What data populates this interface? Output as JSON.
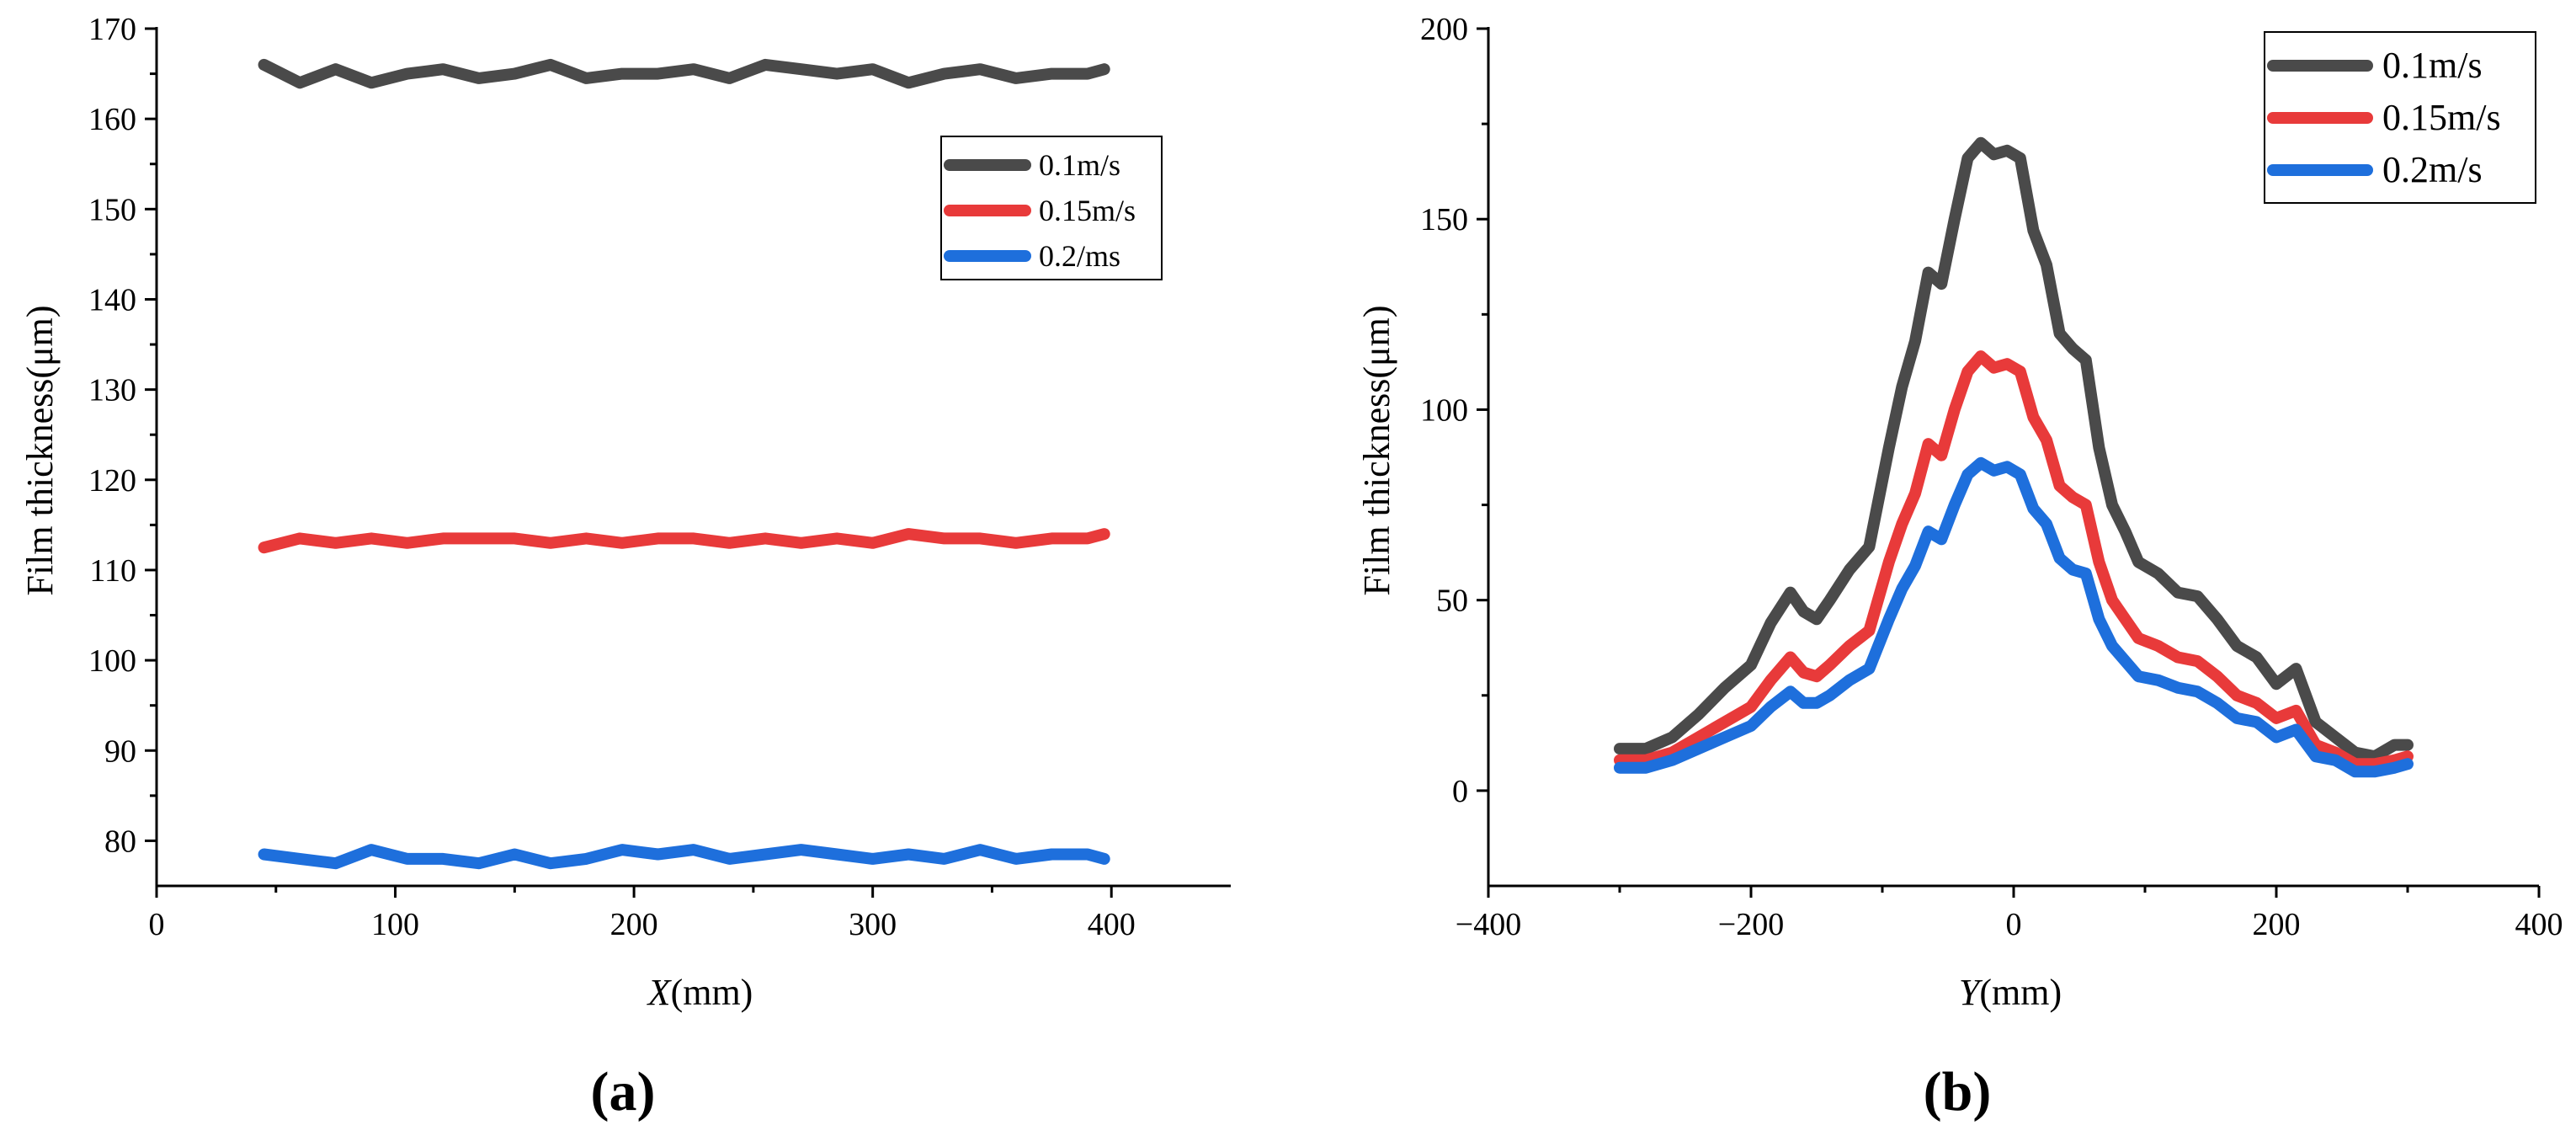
{
  "colors": {
    "dark": "#4a4a4a",
    "red": "#e83a3a",
    "blue": "#1e6fdc"
  },
  "chart_data": [
    {
      "id": "a",
      "type": "line",
      "panel_label": "(a)",
      "xlabel_var": "X",
      "xlabel_unit": "(mm)",
      "ylabel": "Film thickness(μm)",
      "xlim": [
        0,
        450
      ],
      "ylim": [
        75,
        170
      ],
      "xticks": [
        0,
        100,
        200,
        300,
        400
      ],
      "yticks": [
        80,
        90,
        100,
        110,
        120,
        130,
        140,
        150,
        160,
        170
      ],
      "legend_position": "upper-right",
      "series": [
        {
          "name": "0.1m/s",
          "color": "#4a4a4a",
          "x": [
            45,
            60,
            75,
            90,
            105,
            120,
            135,
            150,
            165,
            180,
            195,
            210,
            225,
            240,
            255,
            270,
            285,
            300,
            315,
            330,
            345,
            360,
            375,
            390,
            397
          ],
          "y": [
            166,
            164,
            165.5,
            164,
            165,
            165.5,
            164.5,
            165,
            166,
            164.5,
            165,
            165,
            165.5,
            164.5,
            166,
            165.5,
            165,
            165.5,
            164,
            165,
            165.5,
            164.5,
            165,
            165,
            165.5
          ]
        },
        {
          "name": "0.15m/s",
          "color": "#e83a3a",
          "x": [
            45,
            60,
            75,
            90,
            105,
            120,
            135,
            150,
            165,
            180,
            195,
            210,
            225,
            240,
            255,
            270,
            285,
            300,
            315,
            330,
            345,
            360,
            375,
            390,
            397
          ],
          "y": [
            112.5,
            113.5,
            113,
            113.5,
            113,
            113.5,
            113.5,
            113.5,
            113,
            113.5,
            113,
            113.5,
            113.5,
            113,
            113.5,
            113,
            113.5,
            113,
            114,
            113.5,
            113.5,
            113,
            113.5,
            113.5,
            114
          ]
        },
        {
          "name": "0.2/ms",
          "color": "#1e6fdc",
          "x": [
            45,
            60,
            75,
            90,
            105,
            120,
            135,
            150,
            165,
            180,
            195,
            210,
            225,
            240,
            255,
            270,
            285,
            300,
            315,
            330,
            345,
            360,
            375,
            390,
            397
          ],
          "y": [
            78.5,
            78,
            77.5,
            79,
            78,
            78,
            77.5,
            78.5,
            77.5,
            78,
            79,
            78.5,
            79,
            78,
            78.5,
            79,
            78.5,
            78,
            78.5,
            78,
            79,
            78,
            78.5,
            78.5,
            78
          ]
        }
      ]
    },
    {
      "id": "b",
      "type": "line",
      "panel_label": "(b)",
      "xlabel_var": "Y",
      "xlabel_unit": "(mm)",
      "ylabel": "Film thickness(μm)",
      "xlim": [
        -400,
        400
      ],
      "ylim": [
        -25,
        200
      ],
      "xticks": [
        -400,
        -200,
        0,
        200,
        400
      ],
      "xtick_labels": [
        "−400",
        "−200",
        "0",
        "200",
        "400"
      ],
      "yticks": [
        0,
        50,
        100,
        150,
        200
      ],
      "legend_position": "upper-right",
      "series": [
        {
          "name": "0.1m/s",
          "color": "#4a4a4a",
          "x": [
            -300,
            -280,
            -260,
            -240,
            -220,
            -200,
            -185,
            -170,
            -160,
            -150,
            -140,
            -125,
            -110,
            -95,
            -85,
            -75,
            -65,
            -55,
            -45,
            -35,
            -25,
            -15,
            -5,
            5,
            15,
            25,
            35,
            45,
            55,
            65,
            75,
            85,
            95,
            110,
            125,
            140,
            155,
            170,
            185,
            200,
            215,
            230,
            245,
            260,
            275,
            290,
            300
          ],
          "y": [
            11,
            11,
            14,
            20,
            27,
            33,
            44,
            52,
            47,
            45,
            50,
            58,
            64,
            90,
            106,
            118,
            136,
            133,
            150,
            166,
            170,
            167,
            168,
            166,
            147,
            138,
            120,
            116,
            113,
            90,
            75,
            68,
            60,
            57,
            52,
            51,
            45,
            38,
            35,
            28,
            32,
            18,
            14,
            10,
            9,
            12,
            12
          ]
        },
        {
          "name": "0.15m/s",
          "color": "#e83a3a",
          "x": [
            -300,
            -280,
            -260,
            -240,
            -220,
            -200,
            -185,
            -170,
            -160,
            -150,
            -140,
            -125,
            -110,
            -95,
            -85,
            -75,
            -65,
            -55,
            -45,
            -35,
            -25,
            -15,
            -5,
            5,
            15,
            25,
            35,
            45,
            55,
            65,
            75,
            85,
            95,
            110,
            125,
            140,
            155,
            170,
            185,
            200,
            215,
            230,
            245,
            260,
            275,
            290,
            300
          ],
          "y": [
            8,
            8,
            10,
            14,
            18,
            22,
            29,
            35,
            31,
            30,
            33,
            38,
            42,
            60,
            70,
            78,
            91,
            88,
            100,
            110,
            114,
            111,
            112,
            110,
            98,
            92,
            80,
            77,
            75,
            60,
            50,
            45,
            40,
            38,
            35,
            34,
            30,
            25,
            23,
            19,
            21,
            12,
            10,
            7,
            7,
            8,
            9
          ]
        },
        {
          "name": "0.2m/s",
          "color": "#1e6fdc",
          "x": [
            -300,
            -280,
            -260,
            -240,
            -220,
            -200,
            -185,
            -170,
            -160,
            -150,
            -140,
            -125,
            -110,
            -95,
            -85,
            -75,
            -65,
            -55,
            -45,
            -35,
            -25,
            -15,
            -5,
            5,
            15,
            25,
            35,
            45,
            55,
            65,
            75,
            85,
            95,
            110,
            125,
            140,
            155,
            170,
            185,
            200,
            215,
            230,
            245,
            260,
            275,
            290,
            300
          ],
          "y": [
            6,
            6,
            8,
            11,
            14,
            17,
            22,
            26,
            23,
            23,
            25,
            29,
            32,
            45,
            53,
            59,
            68,
            66,
            75,
            83,
            86,
            84,
            85,
            83,
            74,
            70,
            61,
            58,
            57,
            45,
            38,
            34,
            30,
            29,
            27,
            26,
            23,
            19,
            18,
            14,
            16,
            9,
            8,
            5,
            5,
            6,
            7
          ]
        }
      ]
    }
  ]
}
